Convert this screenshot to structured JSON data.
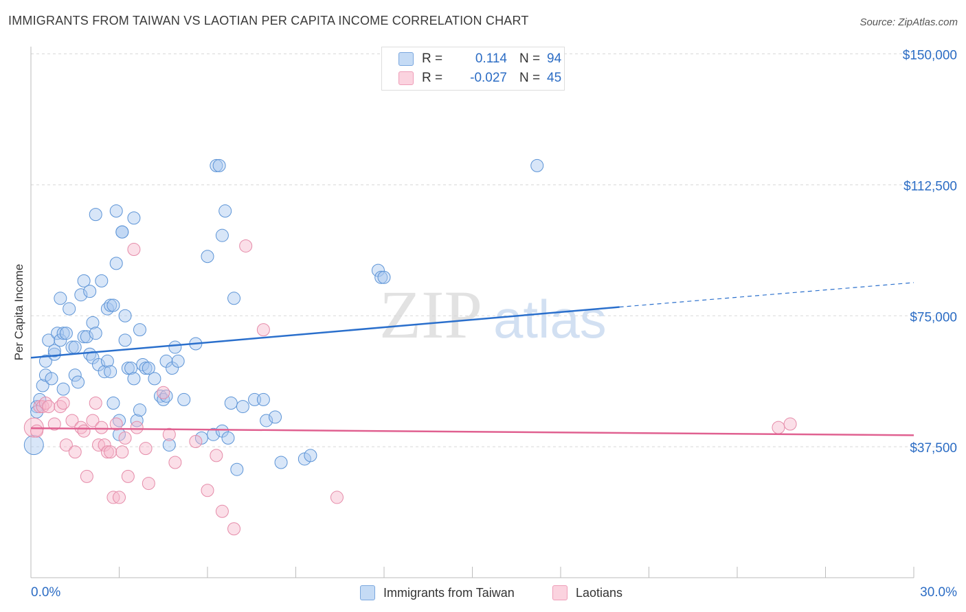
{
  "header": {
    "title": "IMMIGRANTS FROM TAIWAN VS LAOTIAN PER CAPITA INCOME CORRELATION CHART",
    "source": "Source: ZipAtlas.com"
  },
  "watermark": {
    "part1": "ZIP",
    "part2": "atlas"
  },
  "legend": {
    "rows": [
      {
        "r_label": "R =",
        "r_value": "0.114",
        "n_label": "N =",
        "n_value": "94",
        "color": "#a8c8f0"
      },
      {
        "r_label": "R =",
        "r_value": "-0.027",
        "n_label": "N =",
        "n_value": "45",
        "color": "#f6b8cb"
      }
    ]
  },
  "bottom_legend": [
    {
      "label": "Immigrants from Taiwan",
      "color": "#a8c8f0"
    },
    {
      "label": "Laotians",
      "color": "#f6b8cb"
    }
  ],
  "chart_data": {
    "type": "scatter",
    "title": "IMMIGRANTS FROM TAIWAN VS LAOTIAN PER CAPITA INCOME CORRELATION CHART",
    "xlabel": "",
    "ylabel": "Per Capita Income",
    "xlim": [
      0,
      30
    ],
    "ylim": [
      0,
      155000
    ],
    "x_tick_labels": [
      "0.0%",
      "30.0%"
    ],
    "y_ticks": [
      37500,
      75000,
      112500,
      150000
    ],
    "y_tick_labels": [
      "$37,500",
      "$75,000",
      "$112,500",
      "$150,000"
    ],
    "grid": "horizontal dashed",
    "legend_position": "top-center",
    "colors": {
      "taiwan_point": "#a8c8f0",
      "taiwan_edge": "#5b93d6",
      "taiwan_line": "#2a6fcc",
      "laotian_point": "#f6b8cb",
      "laotian_edge": "#e58aa8",
      "laotian_line": "#e06090",
      "axis_label": "#2b6cc4",
      "grid": "#d8d8d8"
    },
    "series": [
      {
        "name": "Immigrants from Taiwan",
        "trend": {
          "x": [
            0,
            20,
            30
          ],
          "y": [
            63000,
            77500,
            84500
          ],
          "solid_until": 20
        },
        "points": [
          [
            0.2,
            49000
          ],
          [
            0.2,
            47500
          ],
          [
            0.3,
            51000
          ],
          [
            0.4,
            55000
          ],
          [
            0.5,
            58000
          ],
          [
            0.5,
            62000
          ],
          [
            0.6,
            68000
          ],
          [
            0.7,
            57000
          ],
          [
            0.8,
            64000
          ],
          [
            0.8,
            65000
          ],
          [
            0.9,
            70000
          ],
          [
            1.0,
            68000
          ],
          [
            1.0,
            80000
          ],
          [
            1.1,
            54000
          ],
          [
            1.1,
            70000
          ],
          [
            1.2,
            70000
          ],
          [
            1.3,
            77000
          ],
          [
            1.4,
            66000
          ],
          [
            1.5,
            66000
          ],
          [
            1.5,
            58000
          ],
          [
            1.6,
            56000
          ],
          [
            1.7,
            81000
          ],
          [
            1.8,
            85000
          ],
          [
            1.8,
            69000
          ],
          [
            1.9,
            69000
          ],
          [
            2.0,
            82000
          ],
          [
            2.0,
            64000
          ],
          [
            2.1,
            73000
          ],
          [
            2.1,
            63000
          ],
          [
            2.2,
            70000
          ],
          [
            2.2,
            104000
          ],
          [
            2.3,
            61000
          ],
          [
            2.4,
            85000
          ],
          [
            2.5,
            59000
          ],
          [
            2.6,
            62000
          ],
          [
            2.6,
            77000
          ],
          [
            2.7,
            78000
          ],
          [
            2.7,
            59000
          ],
          [
            2.8,
            78000
          ],
          [
            2.8,
            50000
          ],
          [
            2.9,
            90000
          ],
          [
            2.9,
            105000
          ],
          [
            3.0,
            45000
          ],
          [
            3.0,
            41000
          ],
          [
            3.1,
            99000
          ],
          [
            3.1,
            99000
          ],
          [
            3.2,
            75000
          ],
          [
            3.2,
            68000
          ],
          [
            3.3,
            60000
          ],
          [
            3.4,
            60000
          ],
          [
            3.5,
            103000
          ],
          [
            3.5,
            57000
          ],
          [
            3.6,
            45000
          ],
          [
            3.7,
            71000
          ],
          [
            3.7,
            48000
          ],
          [
            3.8,
            61000
          ],
          [
            3.9,
            60000
          ],
          [
            4.0,
            60000
          ],
          [
            4.2,
            57000
          ],
          [
            4.4,
            52000
          ],
          [
            4.5,
            51000
          ],
          [
            4.6,
            52000
          ],
          [
            4.6,
            62000
          ],
          [
            4.7,
            38000
          ],
          [
            4.8,
            60000
          ],
          [
            4.9,
            66000
          ],
          [
            5.0,
            62000
          ],
          [
            5.2,
            51000
          ],
          [
            5.6,
            67000
          ],
          [
            5.8,
            40000
          ],
          [
            6.0,
            92000
          ],
          [
            6.2,
            41000
          ],
          [
            6.3,
            118000
          ],
          [
            6.4,
            118000
          ],
          [
            6.5,
            98000
          ],
          [
            6.6,
            105000
          ],
          [
            6.5,
            42000
          ],
          [
            6.7,
            40000
          ],
          [
            6.8,
            50000
          ],
          [
            6.9,
            80000
          ],
          [
            7.0,
            31000
          ],
          [
            7.2,
            49000
          ],
          [
            7.6,
            51000
          ],
          [
            7.9,
            51000
          ],
          [
            8.0,
            45000
          ],
          [
            8.3,
            46000
          ],
          [
            8.5,
            33000
          ],
          [
            9.3,
            34000
          ],
          [
            9.5,
            35000
          ],
          [
            11.8,
            88000
          ],
          [
            11.9,
            86000
          ],
          [
            12.0,
            86000
          ],
          [
            17.2,
            118000
          ],
          [
            0.1,
            38000
          ]
        ]
      },
      {
        "name": "Laotians",
        "trend": {
          "x": [
            0,
            30
          ],
          "y": [
            42800,
            40800
          ]
        },
        "points": [
          [
            0.1,
            43000
          ],
          [
            0.3,
            49000
          ],
          [
            0.4,
            49000
          ],
          [
            0.5,
            50000
          ],
          [
            0.6,
            49000
          ],
          [
            0.8,
            44000
          ],
          [
            1.0,
            49000
          ],
          [
            1.1,
            50000
          ],
          [
            1.2,
            38000
          ],
          [
            1.4,
            45000
          ],
          [
            1.5,
            36000
          ],
          [
            1.7,
            43000
          ],
          [
            1.8,
            42000
          ],
          [
            1.9,
            29000
          ],
          [
            2.1,
            45000
          ],
          [
            2.2,
            50000
          ],
          [
            2.3,
            38000
          ],
          [
            2.4,
            43000
          ],
          [
            2.5,
            38000
          ],
          [
            2.6,
            36000
          ],
          [
            2.7,
            36000
          ],
          [
            2.8,
            23000
          ],
          [
            2.9,
            44000
          ],
          [
            3.0,
            23000
          ],
          [
            3.1,
            36000
          ],
          [
            3.2,
            40000
          ],
          [
            3.3,
            29000
          ],
          [
            3.5,
            94000
          ],
          [
            3.6,
            43000
          ],
          [
            3.9,
            37000
          ],
          [
            4.0,
            27000
          ],
          [
            4.5,
            53000
          ],
          [
            4.7,
            41000
          ],
          [
            4.9,
            33000
          ],
          [
            5.6,
            39000
          ],
          [
            6.0,
            25000
          ],
          [
            6.3,
            35000
          ],
          [
            6.5,
            19000
          ],
          [
            6.9,
            14000
          ],
          [
            7.3,
            95000
          ],
          [
            7.9,
            71000
          ],
          [
            10.4,
            23000
          ],
          [
            25.4,
            43000
          ],
          [
            25.8,
            44000
          ],
          [
            0.2,
            42000
          ]
        ]
      }
    ]
  }
}
